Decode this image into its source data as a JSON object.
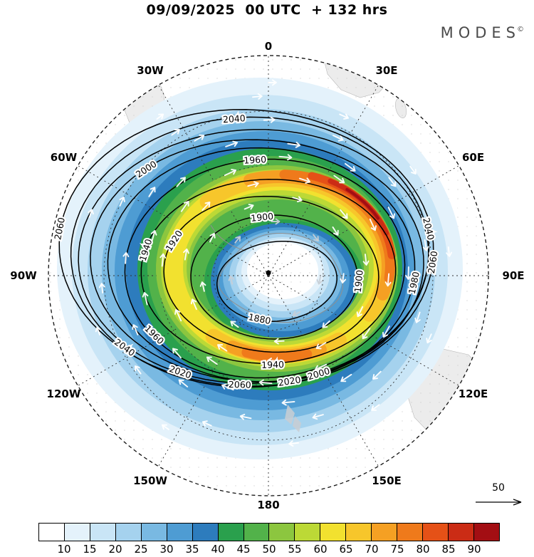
{
  "header": {
    "title": "09/09/2025  00 UTC  + 132 hrs",
    "brand": "MODES",
    "brand_mark": "©"
  },
  "map": {
    "meridians": [
      {
        "label": "0",
        "angle": 0
      },
      {
        "label": "30E",
        "angle": 30
      },
      {
        "label": "60E",
        "angle": 60
      },
      {
        "label": "90E",
        "angle": 90
      },
      {
        "label": "120E",
        "angle": 120
      },
      {
        "label": "150E",
        "angle": 150
      },
      {
        "label": "180",
        "angle": 180
      },
      {
        "label": "150W",
        "angle": 210
      },
      {
        "label": "120W",
        "angle": 240
      },
      {
        "label": "90W",
        "angle": 270
      },
      {
        "label": "60W",
        "angle": 300
      },
      {
        "label": "30W",
        "angle": 330
      }
    ]
  },
  "colorbar": {
    "ticks": [
      "10",
      "15",
      "20",
      "25",
      "30",
      "35",
      "40",
      "45",
      "50",
      "55",
      "60",
      "65",
      "70",
      "75",
      "80",
      "85",
      "90"
    ],
    "colors": [
      "#ffffff",
      "#e4f2fb",
      "#c9e5f6",
      "#a5d2ee",
      "#79b9e2",
      "#4e9cd3",
      "#2d7cbd",
      "#2aa04d",
      "#52b24a",
      "#8cc63f",
      "#bcd936",
      "#f2e12f",
      "#f7c62b",
      "#f5a023",
      "#ef7a1b",
      "#e55117",
      "#cb2c15",
      "#a30e13"
    ]
  },
  "reference_arrow": {
    "label": "50"
  },
  "chart_data": {
    "type": "heatmap",
    "title": "09/09/2025  00 UTC  + 132 hrs",
    "projection": "south polar stereographic",
    "shading_levels": [
      10,
      15,
      20,
      25,
      30,
      35,
      40,
      45,
      50,
      55,
      60,
      65,
      70,
      75,
      80,
      85,
      90
    ],
    "shading_colors": [
      "#ffffff",
      "#e4f2fb",
      "#c9e5f6",
      "#a5d2ee",
      "#79b9e2",
      "#4e9cd3",
      "#2d7cbd",
      "#2aa04d",
      "#52b24a",
      "#8cc63f",
      "#bcd936",
      "#f2e12f",
      "#f7c62b",
      "#f5a023",
      "#ef7a1b",
      "#e55117",
      "#cb2c15",
      "#a30e13"
    ],
    "contour_levels": [
      1880,
      1900,
      1920,
      1940,
      1960,
      1980,
      2000,
      2020,
      2040,
      2060
    ],
    "contour_interval": 20,
    "vector_reference_value": 50,
    "meridian_labels": [
      "0",
      "30E",
      "60E",
      "90E",
      "120E",
      "150E",
      "180",
      "150W",
      "120W",
      "90W",
      "60W",
      "30W"
    ],
    "legend_position": "bottom"
  }
}
